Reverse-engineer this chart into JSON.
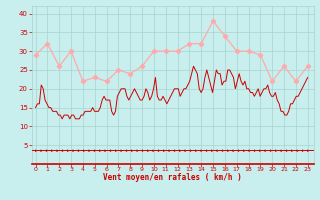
{
  "bg_color": "#c8eeed",
  "grid_color": "#a8d4d0",
  "line_avg_color": "#cc0000",
  "line_gust_color": "#ffaaaa",
  "gust_marker_color": "#ffaaaa",
  "xlabel": "Vent moyen/en rafales ( km/h )",
  "xlabel_color": "#cc0000",
  "tick_color": "#cc0000",
  "ylim": [
    0,
    42
  ],
  "yticks": [
    5,
    10,
    15,
    20,
    25,
    30,
    35,
    40
  ],
  "wind_gust_x": [
    0,
    1,
    2,
    3,
    4,
    5,
    6,
    7,
    8,
    9,
    10,
    11,
    12,
    13,
    14,
    15,
    16,
    17,
    18,
    19,
    20,
    21,
    22,
    23
  ],
  "wind_gust": [
    29,
    32,
    26,
    30,
    22,
    23,
    22,
    25,
    24,
    26,
    30,
    30,
    30,
    32,
    32,
    38,
    34,
    30,
    30,
    29,
    22,
    26,
    22,
    26
  ],
  "wind_avg": [
    15,
    16,
    16,
    21,
    20,
    17,
    16,
    15,
    15,
    14,
    14,
    14,
    13,
    13,
    12,
    13,
    13,
    13,
    12,
    13,
    13,
    12,
    12,
    12,
    13,
    13,
    14,
    14,
    14,
    14,
    15,
    14,
    14,
    14,
    15,
    17,
    18,
    17,
    17,
    17,
    14,
    13,
    14,
    18,
    19,
    20,
    20,
    20,
    18,
    17,
    18,
    19,
    20,
    19,
    18,
    17,
    17,
    18,
    20,
    19,
    17,
    18,
    20,
    23,
    18,
    17,
    17,
    18,
    17,
    16,
    17,
    18,
    19,
    20,
    20,
    20,
    18,
    19,
    20,
    20,
    21,
    22,
    24,
    26,
    25,
    24,
    20,
    19,
    20,
    23,
    25,
    23,
    21,
    19,
    22,
    25,
    24,
    24,
    21,
    22,
    22,
    25,
    25,
    24,
    23,
    20,
    22,
    24,
    22,
    21,
    22,
    20,
    20,
    19,
    19,
    18,
    19,
    20,
    18,
    19,
    20,
    20,
    21,
    19,
    18,
    18,
    19,
    17,
    16,
    14,
    14,
    13,
    13,
    14,
    16,
    16,
    17,
    18,
    18,
    19,
    20,
    21,
    22,
    23
  ]
}
